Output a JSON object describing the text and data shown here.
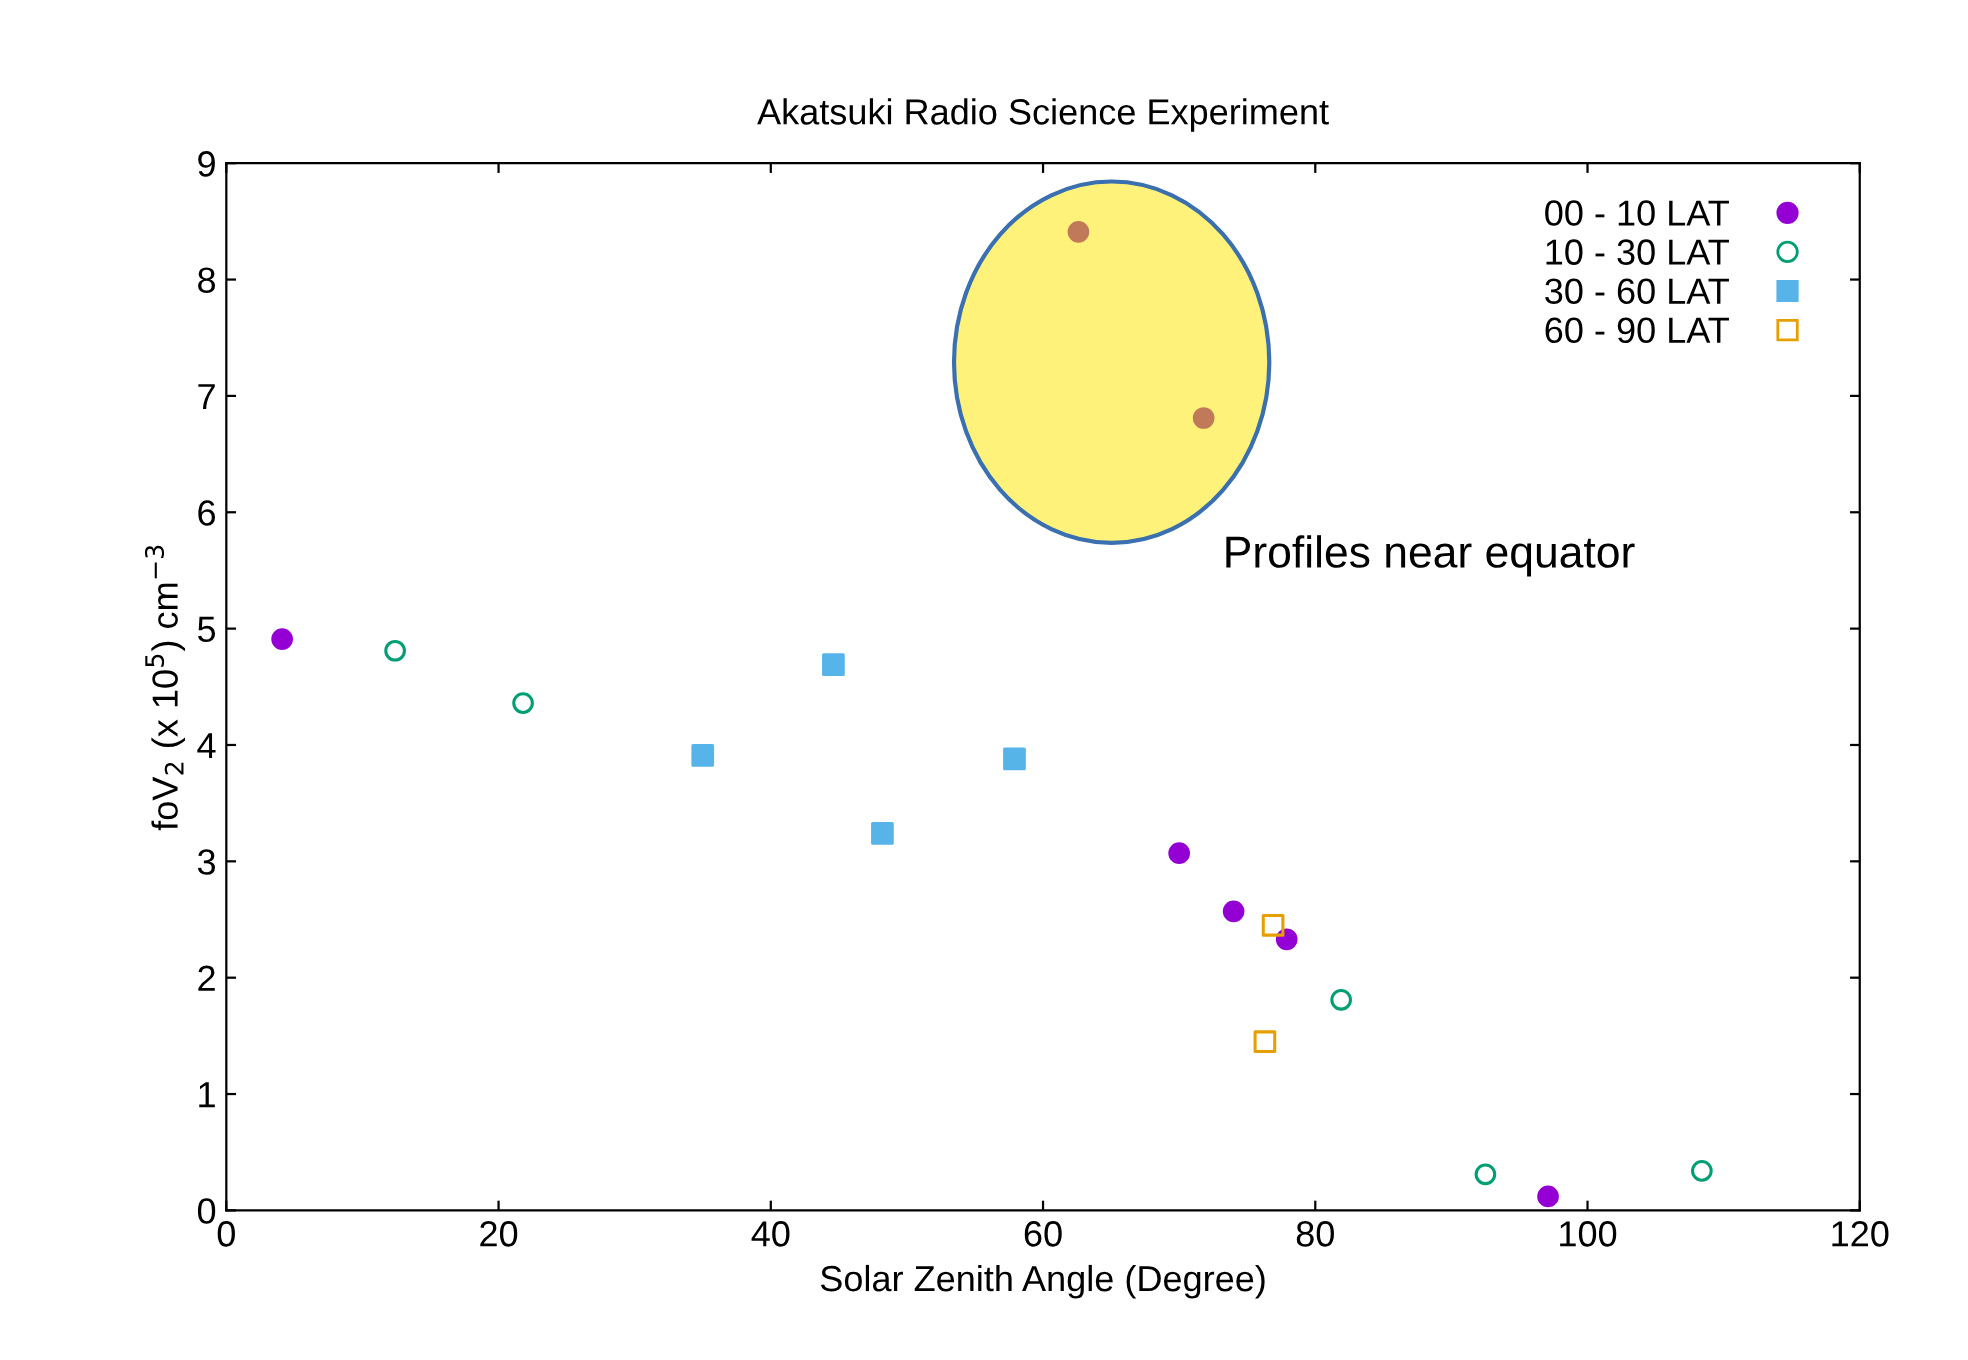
{
  "chart_data": {
    "type": "scatter",
    "title": "Akatsuki Radio Science Experiment",
    "xlabel": "Solar Zenith Angle (Degree)",
    "ylabel": "foV$_{2}$ (x 10$^{5}$) cm$^{−3}$",
    "xlim": [
      0,
      120
    ],
    "xticks": [
      0,
      20,
      40,
      60,
      80,
      100,
      120
    ],
    "ylim": [
      0,
      9
    ],
    "yticks": [
      0,
      1,
      2,
      3,
      4,
      5,
      6,
      7,
      8,
      9
    ],
    "grid": false,
    "legend": "top right",
    "annotations": [
      "Profiles near equator"
    ],
    "series": [
      {
        "name": "00 - 10 LAT",
        "color": "#9400d3",
        "marker": "circle",
        "x": [
          4.1,
          70.0,
          74.0,
          77.9,
          97.1
        ],
        "values": [
          4.91,
          3.07,
          2.57,
          2.33,
          0.12
        ]
      },
      {
        "name": "10 - 30 LAT",
        "color": "#009e73",
        "marker": "circle-open",
        "x": [
          12.4,
          21.8,
          81.9,
          92.5,
          108.4
        ],
        "values": [
          4.81,
          4.36,
          1.81,
          0.31,
          0.34
        ]
      },
      {
        "name": "30 - 60 LAT",
        "color": "#56b4e9",
        "marker": "square",
        "x": [
          35.0,
          44.6,
          48.2,
          57.9
        ],
        "values": [
          3.91,
          4.69,
          3.24,
          3.88
        ]
      },
      {
        "name": "60 - 90 LAT",
        "color": "#e69f00",
        "marker": "square-open",
        "x": [
          76.9,
          76.3
        ],
        "values": [
          2.45,
          1.45
        ]
      },
      {
        "color": "#c07a5a",
        "marker": "circle",
        "x": [
          62.6,
          71.8
        ],
        "values": [
          8.41,
          6.81
        ]
      }
    ]
  }
}
